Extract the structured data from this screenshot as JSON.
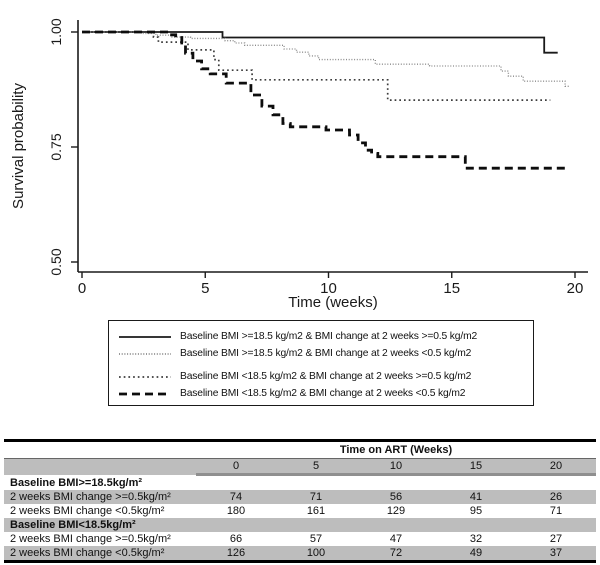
{
  "chart_data": {
    "type": "line",
    "subtype": "kaplan-meier-step",
    "title": "",
    "xlabel": "Time (weeks)",
    "ylabel": "Survival probability",
    "xlim": [
      0,
      20
    ],
    "ylim": [
      0.48,
      1.02
    ],
    "xticks": [
      0,
      5,
      10,
      15,
      20
    ],
    "yticks": [
      0.5,
      0.75,
      1.0
    ],
    "ytick_labels": [
      "0.50",
      "0.75",
      "1.00"
    ],
    "grid": false,
    "legend_position": "bottom-box",
    "series": [
      {
        "name": "Baseline BMI >=18.5 kg/m2 & BMI change at 2 weeks >=0.5 kg/m2",
        "style": {
          "color": "#1a1a1a",
          "dash": "",
          "width": 1.8
        },
        "points": [
          [
            0,
            1.0
          ],
          [
            5.7,
            0.988
          ],
          [
            18.75,
            0.955
          ],
          [
            19.3,
            0.955
          ]
        ]
      },
      {
        "name": "Baseline BMI >=18.5 kg/m2 & BMI change at 2 weeks <0.5 kg/m2",
        "style": {
          "color": "#8a8a8a",
          "dash": "1 1.7",
          "width": 1.35
        },
        "points": [
          [
            0,
            1.0
          ],
          [
            2.4,
            0.997
          ],
          [
            3.0,
            0.993
          ],
          [
            3.6,
            0.989
          ],
          [
            4.4,
            0.986
          ],
          [
            5.8,
            0.981
          ],
          [
            6.2,
            0.976
          ],
          [
            6.6,
            0.971
          ],
          [
            8.2,
            0.963
          ],
          [
            8.7,
            0.956
          ],
          [
            9.2,
            0.948
          ],
          [
            9.6,
            0.94
          ],
          [
            11.9,
            0.93
          ],
          [
            14.1,
            0.926
          ],
          [
            17.0,
            0.915
          ],
          [
            17.3,
            0.904
          ],
          [
            17.9,
            0.893
          ],
          [
            19.6,
            0.882
          ],
          [
            19.75,
            0.882
          ]
        ]
      },
      {
        "name": "Baseline BMI <18.5 kg/m2 & BMI change at 2 weeks >=0.5 kg/m2",
        "style": {
          "color": "#3d3d3d",
          "dash": "1.7 3",
          "width": 1.7
        },
        "points": [
          [
            0,
            1.0
          ],
          [
            2.9,
            0.989
          ],
          [
            3.1,
            0.978
          ],
          [
            4.3,
            0.961
          ],
          [
            5.35,
            0.94
          ],
          [
            5.55,
            0.917
          ],
          [
            6.9,
            0.896
          ],
          [
            12.4,
            0.852
          ],
          [
            19.0,
            0.852
          ]
        ]
      },
      {
        "name": "Baseline BMI <18.5 kg/m2 & BMI change at 2 weeks <0.5 kg/m2",
        "style": {
          "color": "#0d0d0d",
          "dash": "8 5",
          "width": 2.8
        },
        "points": [
          [
            0,
            1.0
          ],
          [
            3.5,
            0.994
          ],
          [
            3.8,
            0.988
          ],
          [
            4.05,
            0.976
          ],
          [
            4.2,
            0.954
          ],
          [
            4.5,
            0.937
          ],
          [
            4.85,
            0.92
          ],
          [
            5.2,
            0.909
          ],
          [
            5.85,
            0.889
          ],
          [
            6.85,
            0.863
          ],
          [
            7.3,
            0.839
          ],
          [
            7.75,
            0.82
          ],
          [
            8.15,
            0.801
          ],
          [
            8.45,
            0.794
          ],
          [
            9.9,
            0.787
          ],
          [
            10.85,
            0.776
          ],
          [
            11.2,
            0.759
          ],
          [
            11.5,
            0.743
          ],
          [
            11.75,
            0.736
          ],
          [
            12.0,
            0.729
          ],
          [
            15.55,
            0.704
          ],
          [
            19.6,
            0.704
          ]
        ]
      }
    ]
  },
  "risk_table": {
    "header": "Time on ART (Weeks)",
    "time_cols": [
      "0",
      "5",
      "10",
      "15",
      "20"
    ],
    "sections": [
      {
        "title": "Baseline BMI>=18.5kg/m²",
        "rows": [
          {
            "label": "2 weeks BMI change >=0.5kg/m²",
            "values": [
              "74",
              "71",
              "56",
              "41",
              "26"
            ]
          },
          {
            "label": "2 weeks BMI change <0.5kg/m²",
            "values": [
              "180",
              "161",
              "129",
              "95",
              "71"
            ]
          }
        ]
      },
      {
        "title": "Baseline BMI<18.5kg/m²",
        "rows": [
          {
            "label": "2 weeks BMI change >=0.5kg/m²",
            "values": [
              "66",
              "57",
              "47",
              "32",
              "27"
            ]
          },
          {
            "label": "2 weeks BMI change <0.5kg/m²",
            "values": [
              "126",
              "100",
              "72",
              "49",
              "37"
            ]
          }
        ]
      }
    ]
  },
  "colors": {
    "row_shade": "#bdbdbd",
    "header_underline": "#8f8f8f",
    "table_rule": "#000000",
    "axis": "#1a1a1a"
  }
}
